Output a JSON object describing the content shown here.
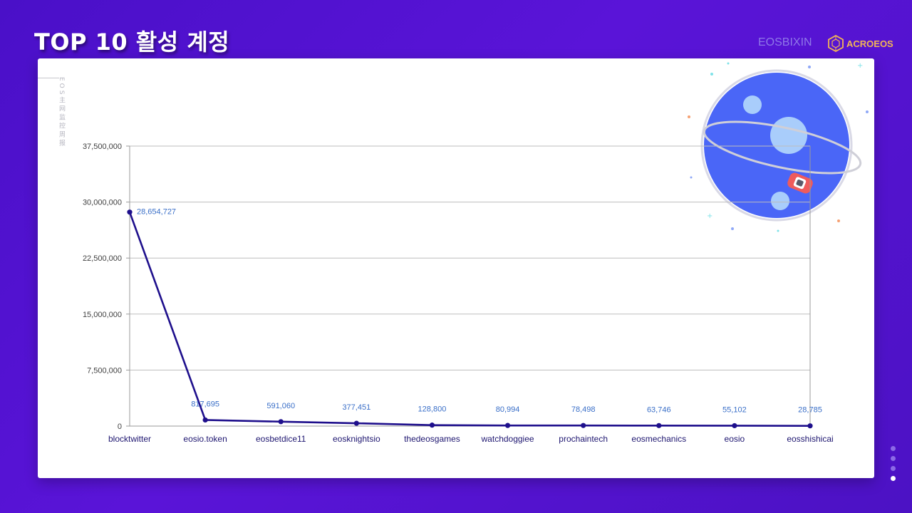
{
  "slide": {
    "title": "TOP 10 활성 계정",
    "brand_text": "EOSBIXIN",
    "brand_logo_text": "ACROEOS",
    "side_watermark": "EOS主网监控周报"
  },
  "colors": {
    "background": "#4f12cc",
    "line": "#1e0f8c",
    "labels": "#3a6fc8",
    "grid": "#bdbdbd",
    "planet": "#4a66f7",
    "logo": "#f3b655"
  },
  "nav": {
    "dots": 4,
    "active_index": 3
  },
  "chart_data": {
    "type": "line",
    "title": "",
    "xlabel": "",
    "ylabel": "",
    "categories": [
      "blocktwitter",
      "eosio.token",
      "eosbetdice11",
      "eosknightsio",
      "thedeosgames",
      "watchdoggiee",
      "prochaintech",
      "eosmechanics",
      "eosio",
      "eosshishicai"
    ],
    "series": [
      {
        "values": [
          28654727,
          817695,
          591060,
          377451,
          128800,
          80994,
          78498,
          63746,
          55102,
          28785
        ]
      }
    ],
    "data_labels": [
      "28,654,727",
      "817,695",
      "591,060",
      "377,451",
      "128,800",
      "80,994",
      "78,498",
      "63,746",
      "55,102",
      "28,785"
    ],
    "ylim": [
      0,
      37500000
    ],
    "yticks": [
      0,
      7500000,
      15000000,
      22500000,
      30000000,
      37500000
    ],
    "ytick_labels": [
      "0",
      "7,500,000",
      "15,000,000",
      "22,500,000",
      "30,000,000",
      "37,500,000"
    ],
    "grid": true,
    "legend": "none"
  }
}
